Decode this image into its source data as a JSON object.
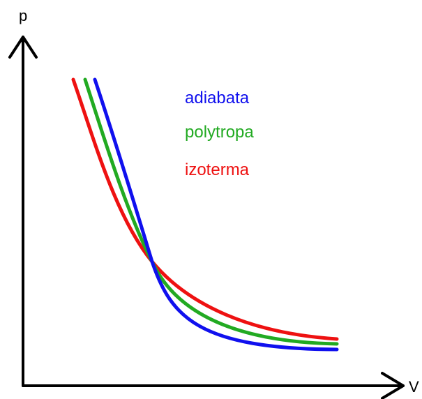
{
  "diagram": {
    "axes": {
      "y_label": "p",
      "x_label": "V"
    },
    "curves": [
      {
        "name": "adiabata",
        "color": "#1010ee"
      },
      {
        "name": "polytropa",
        "color": "#22aa22"
      },
      {
        "name": "izoterma",
        "color": "#ee1111"
      }
    ]
  }
}
